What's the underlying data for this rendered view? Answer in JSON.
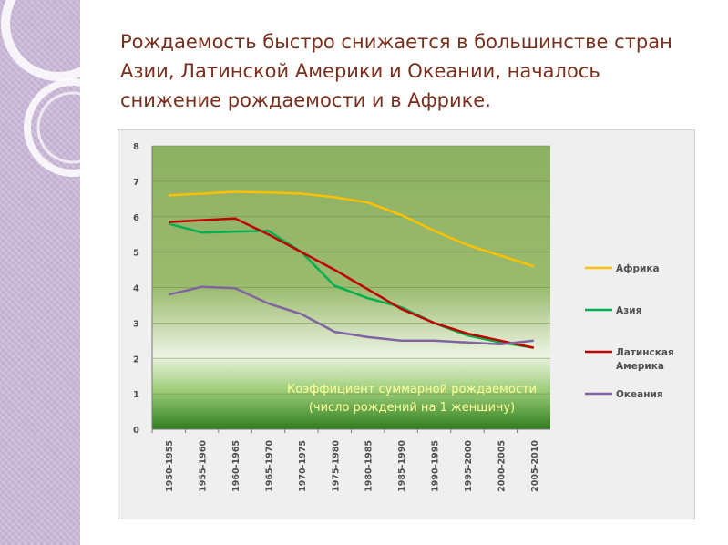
{
  "slide": {
    "title": "Рождаемость быстро снижается в большинстве стран Азии, Латинской Америки и Океании, началось снижение рождаемости и в Африке."
  },
  "chart_data": {
    "type": "line",
    "categories": [
      "1950-1955",
      "1955-1960",
      "1960-1965",
      "1965-1970",
      "1970-1975",
      "1975-1980",
      "1980-1985",
      "1985-1990",
      "1990-1995",
      "1995-2000",
      "2000-2005",
      "2005-2010"
    ],
    "ylim": [
      0,
      8
    ],
    "yticks": [
      "0",
      "1",
      "2",
      "3",
      "4",
      "5",
      "6",
      "7",
      "8"
    ],
    "grid": true,
    "legend_position": "right",
    "annotation_lines": [
      "Коэффициент суммарной рождаемости",
      "(число рождений на 1 женщину)"
    ],
    "series": [
      {
        "name": "Африка",
        "color": "#ffc000",
        "values": [
          6.6,
          6.65,
          6.7,
          6.68,
          6.65,
          6.55,
          6.4,
          6.05,
          5.6,
          5.2,
          4.9,
          4.6
        ]
      },
      {
        "name": "Азия",
        "color": "#00b050",
        "values": [
          5.8,
          5.55,
          5.58,
          5.6,
          5.0,
          4.05,
          3.7,
          3.45,
          3.0,
          2.65,
          2.45,
          2.3
        ]
      },
      {
        "name": "Латинская Америка",
        "color": "#c00000",
        "values": [
          5.85,
          5.9,
          5.95,
          5.5,
          5.0,
          4.5,
          3.95,
          3.4,
          3.0,
          2.7,
          2.5,
          2.3
        ]
      },
      {
        "name": "Океания",
        "color": "#8064a2",
        "values": [
          3.8,
          4.02,
          3.98,
          3.55,
          3.25,
          2.75,
          2.6,
          2.5,
          2.5,
          2.45,
          2.4,
          2.5
        ]
      }
    ]
  }
}
